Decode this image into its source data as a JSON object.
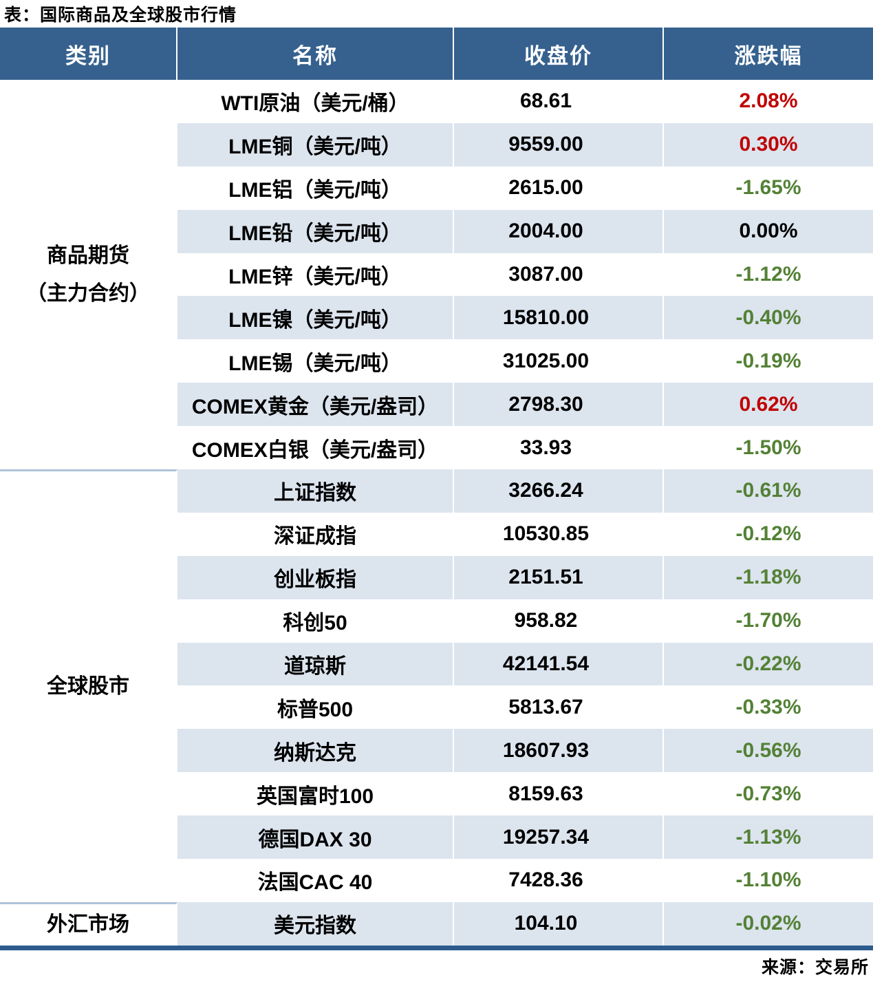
{
  "title": "表：国际商品及全球股市行情",
  "source": "来源：交易所",
  "header": {
    "category": "类别",
    "name": "名称",
    "close": "收盘价",
    "change": "涨跌幅"
  },
  "colors": {
    "header_bg": "#36618E",
    "header_text": "#FFFFFF",
    "band_bg": "#DCE4EE",
    "up_red": "#C00000",
    "down_green": "#538135",
    "flat_black": "#000000",
    "bottom_rule": "#2E5B8D",
    "section_divider": "#AEC3D8"
  },
  "sections": [
    {
      "category_lines": [
        "商品期货",
        "（主力合约）"
      ],
      "rows": [
        {
          "name": "WTI原油（美元/桶）",
          "close": "68.61",
          "change": "2.08%",
          "direction": "up"
        },
        {
          "name": "LME铜（美元/吨）",
          "close": "9559.00",
          "change": "0.30%",
          "direction": "up"
        },
        {
          "name": "LME铝（美元/吨）",
          "close": "2615.00",
          "change": "-1.65%",
          "direction": "down"
        },
        {
          "name": "LME铅（美元/吨）",
          "close": "2004.00",
          "change": "0.00%",
          "direction": "flat"
        },
        {
          "name": "LME锌（美元/吨）",
          "close": "3087.00",
          "change": "-1.12%",
          "direction": "down"
        },
        {
          "name": "LME镍（美元/吨）",
          "close": "15810.00",
          "change": "-0.40%",
          "direction": "down"
        },
        {
          "name": "LME锡（美元/吨）",
          "close": "31025.00",
          "change": "-0.19%",
          "direction": "down"
        },
        {
          "name": "COMEX黄金（美元/盎司）",
          "close": "2798.30",
          "change": "0.62%",
          "direction": "up"
        },
        {
          "name": "COMEX白银（美元/盎司）",
          "close": "33.93",
          "change": "-1.50%",
          "direction": "down"
        }
      ]
    },
    {
      "category_lines": [
        "全球股市"
      ],
      "rows": [
        {
          "name": "上证指数",
          "close": "3266.24",
          "change": "-0.61%",
          "direction": "down"
        },
        {
          "name": "深证成指",
          "close": "10530.85",
          "change": "-0.12%",
          "direction": "down"
        },
        {
          "name": "创业板指",
          "close": "2151.51",
          "change": "-1.18%",
          "direction": "down"
        },
        {
          "name": "科创50",
          "close": "958.82",
          "change": "-1.70%",
          "direction": "down"
        },
        {
          "name": "道琼斯",
          "close": "42141.54",
          "change": "-0.22%",
          "direction": "down"
        },
        {
          "name": "标普500",
          "close": "5813.67",
          "change": "-0.33%",
          "direction": "down"
        },
        {
          "name": "纳斯达克",
          "close": "18607.93",
          "change": "-0.56%",
          "direction": "down"
        },
        {
          "name": "英国富时100",
          "close": "8159.63",
          "change": "-0.73%",
          "direction": "down"
        },
        {
          "name": "德国DAX 30",
          "close": "19257.34",
          "change": "-1.13%",
          "direction": "down"
        },
        {
          "name": "法国CAC 40",
          "close": "7428.36",
          "change": "-1.10%",
          "direction": "down"
        }
      ]
    },
    {
      "category_lines": [
        "外汇市场"
      ],
      "rows": [
        {
          "name": "美元指数",
          "close": "104.10",
          "change": "-0.02%",
          "direction": "down"
        }
      ]
    }
  ],
  "chart_data": {
    "type": "table",
    "title": "表：国际商品及全球股市行情",
    "columns": [
      "类别",
      "名称",
      "收盘价",
      "涨跌幅"
    ],
    "rows": [
      [
        "商品期货（主力合约）",
        "WTI原油（美元/桶）",
        68.61,
        "2.08%"
      ],
      [
        "商品期货（主力合约）",
        "LME铜（美元/吨）",
        9559.0,
        "0.30%"
      ],
      [
        "商品期货（主力合约）",
        "LME铝（美元/吨）",
        2615.0,
        "-1.65%"
      ],
      [
        "商品期货（主力合约）",
        "LME铅（美元/吨）",
        2004.0,
        "0.00%"
      ],
      [
        "商品期货（主力合约）",
        "LME锌（美元/吨）",
        3087.0,
        "-1.12%"
      ],
      [
        "商品期货（主力合约）",
        "LME镍（美元/吨）",
        15810.0,
        "-0.40%"
      ],
      [
        "商品期货（主力合约）",
        "LME锡（美元/吨）",
        31025.0,
        "-0.19%"
      ],
      [
        "商品期货（主力合约）",
        "COMEX黄金（美元/盎司）",
        2798.3,
        "0.62%"
      ],
      [
        "商品期货（主力合约）",
        "COMEX白银（美元/盎司）",
        33.93,
        "-1.50%"
      ],
      [
        "全球股市",
        "上证指数",
        3266.24,
        "-0.61%"
      ],
      [
        "全球股市",
        "深证成指",
        10530.85,
        "-0.12%"
      ],
      [
        "全球股市",
        "创业板指",
        2151.51,
        "-1.18%"
      ],
      [
        "全球股市",
        "科创50",
        958.82,
        "-1.70%"
      ],
      [
        "全球股市",
        "道琼斯",
        42141.54,
        "-0.22%"
      ],
      [
        "全球股市",
        "标普500",
        5813.67,
        "-0.33%"
      ],
      [
        "全球股市",
        "纳斯达克",
        18607.93,
        "-0.56%"
      ],
      [
        "全球股市",
        "英国富时100",
        8159.63,
        "-0.73%"
      ],
      [
        "全球股市",
        "德国DAX 30",
        19257.34,
        "-1.13%"
      ],
      [
        "全球股市",
        "法国CAC 40",
        7428.36,
        "-1.10%"
      ],
      [
        "外汇市场",
        "美元指数",
        104.1,
        "-0.02%"
      ]
    ],
    "source": "来源：交易所"
  }
}
